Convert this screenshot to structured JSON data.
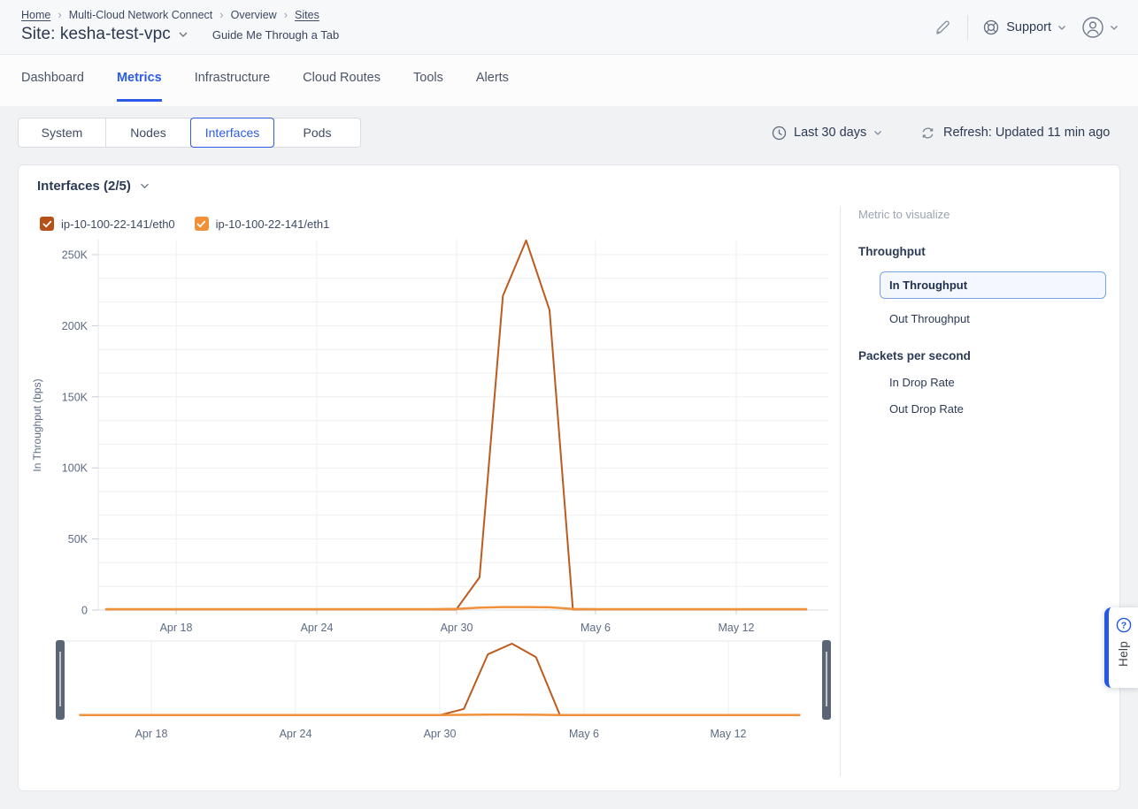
{
  "colors": {
    "accent_blue": "#2e5be6",
    "eth0": "#bd5a1e",
    "eth0_checkbox": "#b65017",
    "eth1": "#f0913a",
    "brush_handle": "#5a6676",
    "help_blue": "#2457e5"
  },
  "header": {
    "breadcrumb": [
      {
        "label": "Home",
        "link": true
      },
      {
        "label": "Multi-Cloud Network Connect",
        "link": false
      },
      {
        "label": "Overview",
        "link": false
      },
      {
        "label": "Sites",
        "link": true
      }
    ],
    "title": "Site: kesha-test-vpc",
    "guide_link": "Guide Me Through a Tab",
    "support_label": "Support"
  },
  "tabs": [
    {
      "label": "Dashboard",
      "active": false
    },
    {
      "label": "Metrics",
      "active": true
    },
    {
      "label": "Infrastructure",
      "active": false
    },
    {
      "label": "Cloud Routes",
      "active": false
    },
    {
      "label": "Tools",
      "active": false
    },
    {
      "label": "Alerts",
      "active": false
    }
  ],
  "subtabs": [
    {
      "label": "System",
      "selected": false
    },
    {
      "label": "Nodes",
      "selected": false
    },
    {
      "label": "Interfaces",
      "selected": true
    },
    {
      "label": "Pods",
      "selected": false
    }
  ],
  "toolbar": {
    "time_range": "Last 30 days",
    "refresh": "Refresh: Updated 11 min ago"
  },
  "panel": {
    "title": "Interfaces (2/5)"
  },
  "legend": [
    {
      "label": "ip-10-100-22-141/eth0",
      "color": "#b65017",
      "checked": true
    },
    {
      "label": "ip-10-100-22-141/eth1",
      "color": "#f0913a",
      "checked": true
    }
  ],
  "sidebar": {
    "title": "Metric to visualize",
    "groups": [
      {
        "heading": "Throughput",
        "items": [
          {
            "label": "In Throughput",
            "selected": true
          },
          {
            "label": "Out Throughput",
            "selected": false
          }
        ]
      },
      {
        "heading": "Packets per second",
        "items": [
          {
            "label": "In Drop Rate",
            "selected": false
          },
          {
            "label": "Out Drop Rate",
            "selected": false
          }
        ]
      }
    ]
  },
  "help": {
    "label": "Help"
  },
  "chart_data": {
    "type": "line",
    "title": "Interfaces (2/5)",
    "ylabel": "In Throughput (bps)",
    "xlabel": "",
    "grid": true,
    "legend_position": "top-left",
    "ylim": [
      0,
      250000
    ],
    "yticks": [
      "0",
      "50K",
      "100K",
      "150K",
      "200K",
      "250K"
    ],
    "ytick_values": [
      0,
      50000,
      100000,
      150000,
      200000,
      250000
    ],
    "xticks": [
      "Apr 18",
      "Apr 24",
      "Apr 30",
      "May 6",
      "May 12"
    ],
    "x": [
      "Apr 15",
      "Apr 16",
      "Apr 17",
      "Apr 18",
      "Apr 19",
      "Apr 20",
      "Apr 21",
      "Apr 22",
      "Apr 23",
      "Apr 24",
      "Apr 25",
      "Apr 26",
      "Apr 27",
      "Apr 28",
      "Apr 29",
      "Apr 30",
      "May 1",
      "May 2",
      "May 3",
      "May 4",
      "May 5",
      "May 6",
      "May 7",
      "May 8",
      "May 9",
      "May 10",
      "May 11",
      "May 12",
      "May 13",
      "May 14",
      "May 15"
    ],
    "series": [
      {
        "name": "ip-10-100-22-141/eth0",
        "color": "#bd5a1e",
        "values": [
          400,
          400,
          400,
          400,
          400,
          400,
          400,
          400,
          400,
          400,
          400,
          400,
          400,
          400,
          400,
          400,
          23000,
          221000,
          260000,
          211000,
          400,
          400,
          400,
          400,
          400,
          400,
          400,
          400,
          400,
          400,
          400
        ]
      },
      {
        "name": "ip-10-100-22-141/eth1",
        "color": "#f0913a",
        "values": [
          600,
          600,
          600,
          600,
          600,
          600,
          600,
          600,
          600,
          600,
          600,
          600,
          600,
          600,
          600,
          800,
          1700,
          2100,
          2100,
          1900,
          800,
          600,
          600,
          600,
          600,
          600,
          600,
          600,
          600,
          600,
          600
        ]
      }
    ],
    "brush": {
      "xticks": [
        "Apr 18",
        "Apr 24",
        "Apr 30",
        "May 6",
        "May 12"
      ],
      "selection": "full range"
    }
  }
}
